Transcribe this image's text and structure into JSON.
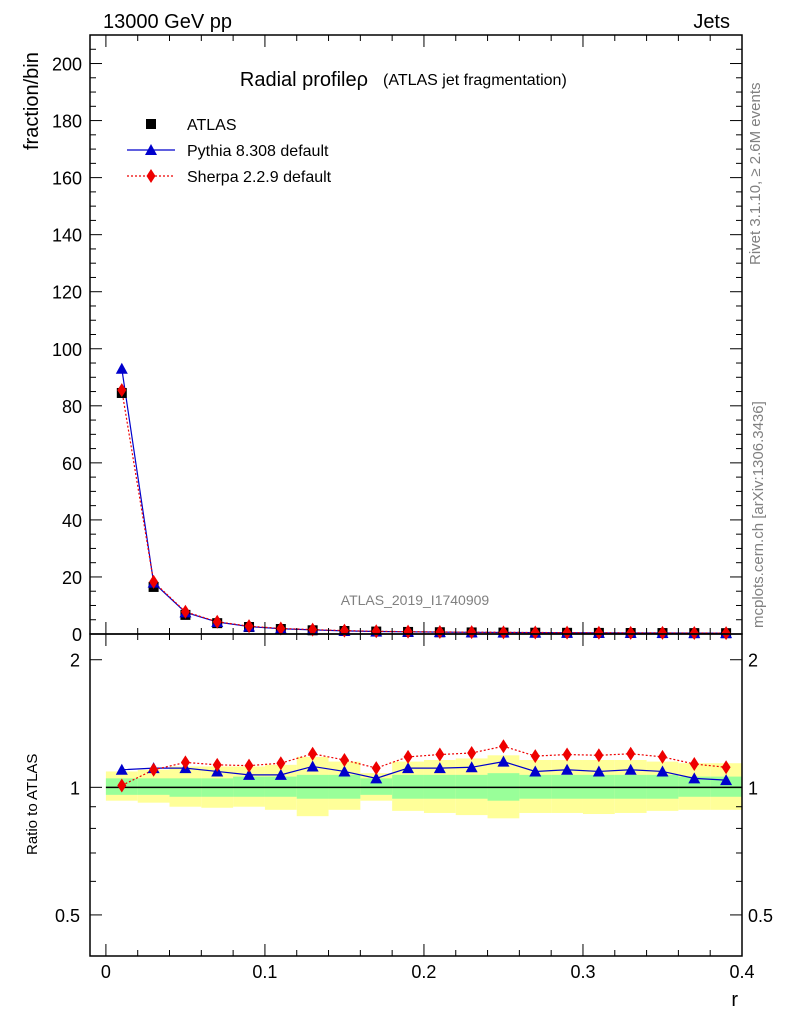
{
  "header": {
    "energy_label": "13000 GeV pp",
    "category_label": "Jets"
  },
  "side_labels": {
    "rivet": "Rivet 3.1.10, ≥ 2.6M events",
    "source": "mcplots.cern.ch [arXiv:1306.3436]"
  },
  "watermark": "ATLAS_2019_I1740909",
  "colors": {
    "atlas": "#000000",
    "pythia": "#0000cc",
    "sherpa": "#ee0000",
    "band_inner": "#99ff99",
    "band_outer": "#ffff99"
  },
  "chart_data": [
    {
      "type": "line",
      "title": "Radial profileρ",
      "subtitle": "(ATLAS jet fragmentation)",
      "ylabel": "fraction/bin",
      "xlabel": "",
      "xlim": [
        -0.01,
        0.4
      ],
      "ylim": [
        0,
        210
      ],
      "yticks": [
        0,
        20,
        40,
        60,
        80,
        100,
        120,
        140,
        160,
        180,
        200
      ],
      "ytick_labels": [
        "0",
        "20",
        "40",
        "60",
        "80",
        "100",
        "120",
        "140",
        "160",
        "180",
        "200"
      ],
      "legend_position": "top-left",
      "x": [
        0.01,
        0.03,
        0.05,
        0.07,
        0.09,
        0.11,
        0.13,
        0.15,
        0.17,
        0.19,
        0.21,
        0.23,
        0.25,
        0.27,
        0.29,
        0.31,
        0.33,
        0.35,
        0.37,
        0.39
      ],
      "series": [
        {
          "name": "ATLAS",
          "marker": "square",
          "values": [
            84.5,
            16.5,
            6.7,
            3.8,
            2.45,
            1.75,
            1.3,
            1.05,
            0.85,
            0.72,
            0.62,
            0.55,
            0.49,
            0.45,
            0.41,
            0.38,
            0.35,
            0.33,
            0.31,
            0.29
          ]
        },
        {
          "name": "Pythia 8.308 default",
          "marker": "triangle",
          "values": [
            93.0,
            18.0,
            7.6,
            4.2,
            2.6,
            1.85,
            1.45,
            1.1,
            0.88,
            0.77,
            0.66,
            0.59,
            0.54,
            0.48,
            0.44,
            0.41,
            0.38,
            0.35,
            0.32,
            0.3
          ]
        },
        {
          "name": "Sherpa 2.2.9 default",
          "marker": "diamond",
          "values": [
            85.5,
            18.3,
            7.8,
            4.3,
            2.75,
            1.95,
            1.55,
            1.2,
            0.95,
            0.82,
            0.72,
            0.64,
            0.59,
            0.53,
            0.48,
            0.45,
            0.41,
            0.38,
            0.35,
            0.32
          ]
        }
      ]
    },
    {
      "type": "line",
      "ylabel": "Ratio to ATLAS",
      "xlabel": "r",
      "xlim": [
        -0.01,
        0.4
      ],
      "ylim": [
        0.4,
        2.3
      ],
      "yscale": "log",
      "yticks": [
        0.5,
        1,
        2
      ],
      "ytick_labels": [
        "0.5",
        "1",
        "2"
      ],
      "xticks": [
        0,
        0.1,
        0.2,
        0.3,
        0.4
      ],
      "xtick_labels": [
        "0",
        "0.1",
        "0.2",
        "0.3",
        "0.4"
      ],
      "x": [
        0.01,
        0.03,
        0.05,
        0.07,
        0.09,
        0.11,
        0.13,
        0.15,
        0.17,
        0.19,
        0.21,
        0.23,
        0.25,
        0.27,
        0.29,
        0.31,
        0.33,
        0.35,
        0.37,
        0.39
      ],
      "bands": {
        "inner_low": [
          0.96,
          0.96,
          0.95,
          0.95,
          0.95,
          0.95,
          0.94,
          0.94,
          0.96,
          0.94,
          0.94,
          0.94,
          0.93,
          0.94,
          0.94,
          0.94,
          0.94,
          0.94,
          0.95,
          0.95
        ],
        "inner_high": [
          1.05,
          1.05,
          1.05,
          1.05,
          1.06,
          1.06,
          1.07,
          1.07,
          1.05,
          1.07,
          1.07,
          1.07,
          1.08,
          1.07,
          1.07,
          1.07,
          1.07,
          1.07,
          1.06,
          1.06
        ],
        "outer_low": [
          0.93,
          0.92,
          0.9,
          0.895,
          0.9,
          0.885,
          0.855,
          0.885,
          0.93,
          0.88,
          0.87,
          0.86,
          0.845,
          0.87,
          0.87,
          0.865,
          0.87,
          0.88,
          0.885,
          0.885
        ],
        "outer_high": [
          1.09,
          1.1,
          1.12,
          1.12,
          1.12,
          1.13,
          1.18,
          1.15,
          1.08,
          1.15,
          1.16,
          1.17,
          1.19,
          1.16,
          1.16,
          1.16,
          1.16,
          1.15,
          1.14,
          1.14
        ]
      },
      "series": [
        {
          "name": "Pythia 8.308 default",
          "marker": "triangle",
          "values": [
            1.1,
            1.11,
            1.11,
            1.09,
            1.07,
            1.07,
            1.12,
            1.09,
            1.05,
            1.11,
            1.11,
            1.115,
            1.15,
            1.09,
            1.1,
            1.09,
            1.1,
            1.09,
            1.05,
            1.04
          ]
        },
        {
          "name": "Sherpa 2.2.9 default",
          "marker": "diamond",
          "values": [
            1.01,
            1.1,
            1.145,
            1.13,
            1.125,
            1.14,
            1.2,
            1.16,
            1.11,
            1.18,
            1.195,
            1.205,
            1.25,
            1.185,
            1.195,
            1.19,
            1.2,
            1.18,
            1.135,
            1.115
          ]
        }
      ]
    }
  ]
}
